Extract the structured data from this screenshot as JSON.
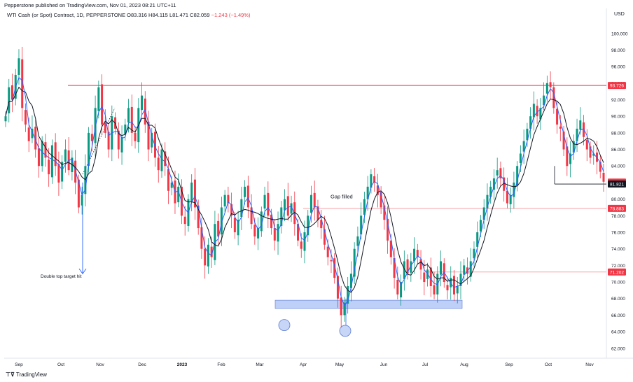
{
  "header": {
    "publisher": "Pepperstone published on TradingView.com, Nov 01, 2023 08:21 UTC+11",
    "currency": "USD"
  },
  "legend": {
    "symbol": "WTI Cash (or Spot) Contract, 1D, PEPPERSTONE",
    "o": "O83.316",
    "h": "H84.115",
    "l": "L81.471",
    "c": "C82.059",
    "chg": "−1.243 (−1.49%)"
  },
  "footer": {
    "brand": "TradingView"
  },
  "chart_data": {
    "type": "candlestick",
    "y_ticks": [
      "62.000",
      "64.000",
      "66.000",
      "68.000",
      "70.000",
      "72.000",
      "74.000",
      "76.000",
      "78.000",
      "80.000",
      "82.000",
      "84.000",
      "86.000",
      "88.000",
      "90.000",
      "92.000",
      "94.000",
      "96.000",
      "98.000",
      "100.000"
    ],
    "ylim": [
      60.8,
      101.5
    ],
    "x_ticks": [
      "Sep",
      "Oct",
      "Nov",
      "Dec",
      "2023",
      "Feb",
      "Mar",
      "Apr",
      "May",
      "Jun",
      "Jul",
      "Aug",
      "Sep",
      "Oct",
      "Nov"
    ],
    "price_labels": [
      {
        "value": 93.726,
        "text": "93.726",
        "color": "#f23645"
      },
      {
        "value": 82.059,
        "text": "82.059",
        "color": "#f23645"
      },
      {
        "value": 81.821,
        "text": "81.821",
        "color": "#131722"
      },
      {
        "value": 78.883,
        "text": "78.883",
        "color": "#f23645"
      },
      {
        "value": 71.202,
        "text": "71.202",
        "color": "#f23645"
      }
    ],
    "annotations": [
      {
        "text": "Gap filled"
      },
      {
        "text": "Double top target hit"
      }
    ],
    "support_zone": {
      "from": 66.8,
      "to": 67.8,
      "color": "#b3c7f7"
    },
    "colors": {
      "up": "#089981",
      "down": "#f23645",
      "ma_fast": "#2962ff",
      "ma_slow": "#131722",
      "arrow": "#2962ff"
    },
    "closes": [
      90.0,
      93.5,
      92.0,
      95.0,
      97.0,
      91.0,
      89.0,
      87.0,
      88.5,
      86.0,
      84.0,
      87.0,
      85.0,
      83.0,
      86.5,
      84.0,
      82.0,
      84.5,
      86.0,
      83.5,
      85.0,
      82.0,
      79.0,
      80.5,
      84.0,
      88.0,
      87.0,
      91.0,
      93.5,
      89.0,
      88.0,
      86.0,
      90.0,
      88.5,
      86.0,
      87.5,
      89.0,
      91.0,
      88.0,
      87.0,
      91.0,
      92.5,
      89.0,
      86.0,
      88.0,
      85.0,
      83.5,
      86.0,
      84.0,
      81.0,
      82.0,
      79.5,
      81.5,
      78.0,
      77.0,
      80.0,
      82.0,
      79.0,
      76.5,
      74.0,
      72.0,
      74.5,
      73.0,
      77.0,
      75.5,
      79.0,
      80.5,
      79.5,
      78.0,
      76.0,
      77.5,
      80.0,
      81.5,
      79.0,
      77.0,
      75.5,
      76.5,
      78.5,
      80.5,
      78.0,
      76.5,
      75.0,
      77.0,
      79.0,
      80.0,
      78.0,
      79.5,
      77.0,
      75.0,
      74.0,
      76.0,
      78.0,
      80.5,
      79.0,
      77.5,
      76.5,
      74.5,
      73.0,
      72.5,
      70.5,
      68.0,
      66.0,
      67.5,
      69.5,
      71.0,
      74.0,
      75.5,
      78.0,
      80.0,
      81.5,
      83.0,
      82.0,
      80.5,
      79.0,
      77.5,
      75.0,
      73.0,
      70.5,
      68.5,
      70.0,
      72.5,
      71.0,
      72.5,
      74.0,
      73.0,
      71.5,
      70.0,
      71.5,
      69.5,
      68.5,
      71.0,
      72.5,
      70.0,
      69.0,
      70.5,
      68.5,
      69.5,
      71.0,
      72.0,
      71.0,
      72.5,
      74.0,
      76.0,
      77.5,
      79.0,
      80.5,
      81.5,
      82.5,
      83.5,
      82.5,
      81.0,
      79.5,
      80.5,
      82.0,
      84.0,
      85.5,
      87.0,
      88.5,
      90.0,
      91.5,
      90.0,
      91.0,
      92.5,
      94.0,
      93.5,
      91.0,
      89.0,
      88.5,
      86.0,
      84.0,
      85.5,
      87.0,
      88.5,
      89.5,
      87.5,
      86.0,
      85.0,
      85.5,
      84.5,
      83.3,
      82.1
    ]
  }
}
